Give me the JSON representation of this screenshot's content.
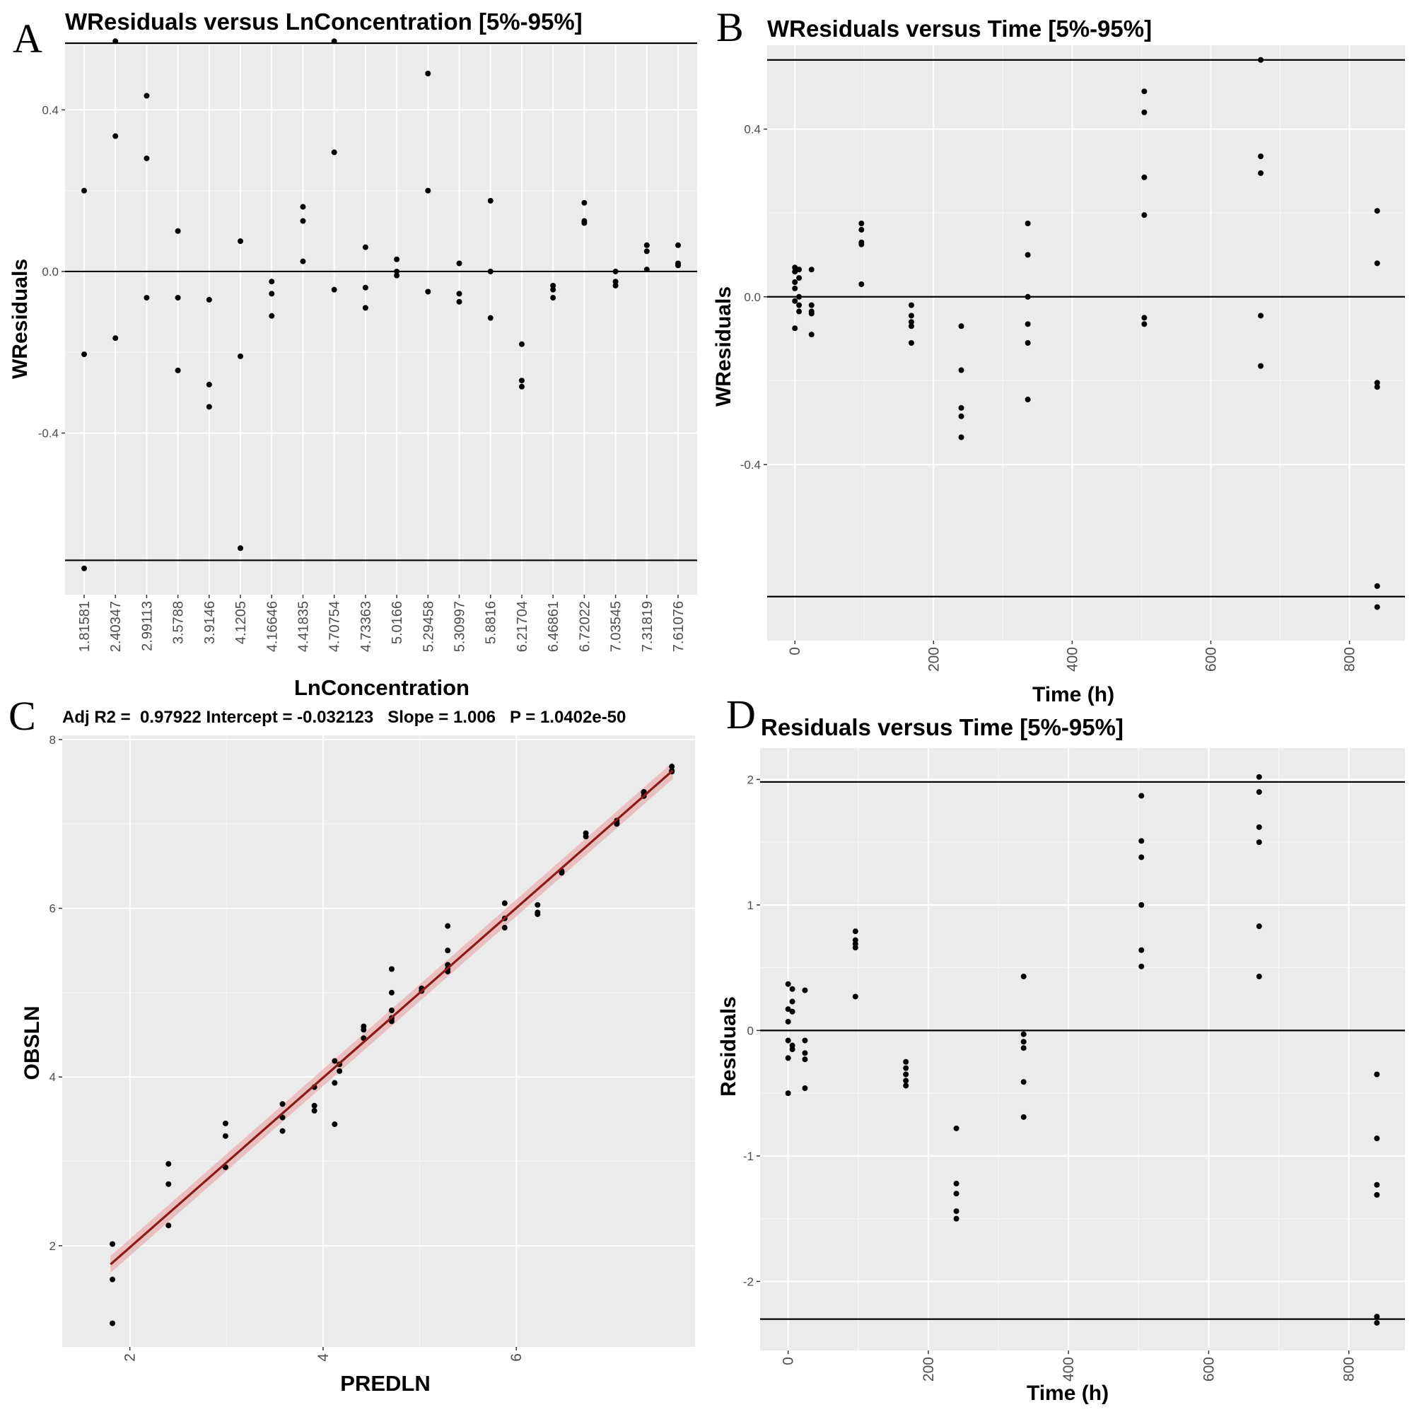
{
  "chart_data": [
    {
      "type": "scatter",
      "panel_letter": "A",
      "title": "WResiduals versus LnConcentration [5%-95%]",
      "xlabel": "LnConcentration",
      "ylabel": "WResiduals",
      "x_scale": "categorical",
      "categories": [
        "1.81581",
        "2.40347",
        "2.99113",
        "3.5788",
        "3.9146",
        "4.1205",
        "4.16646",
        "4.41835",
        "4.70754",
        "4.73363",
        "5.0166",
        "5.29458",
        "5.30997",
        "5.8816",
        "6.21704",
        "6.46861",
        "6.72022",
        "7.03545",
        "7.31819",
        "7.61076"
      ],
      "ylim": [
        -0.8,
        0.56
      ],
      "yticks": [
        "0.4",
        "0.0",
        "-0.4"
      ],
      "ytick_values": [
        0.4,
        0.0,
        -0.4
      ],
      "hlines": [
        0.565,
        0.0,
        -0.715
      ],
      "points": [
        [
          0,
          0.2
        ],
        [
          0,
          -0.205
        ],
        [
          0,
          -0.735
        ],
        [
          1,
          0.57
        ],
        [
          1,
          0.335
        ],
        [
          1,
          -0.165
        ],
        [
          2,
          0.435
        ],
        [
          2,
          0.28
        ],
        [
          2,
          -0.065
        ],
        [
          3,
          0.1
        ],
        [
          3,
          -0.065
        ],
        [
          3,
          -0.245
        ],
        [
          4,
          -0.07
        ],
        [
          4,
          -0.28
        ],
        [
          4,
          -0.335
        ],
        [
          5,
          0.075
        ],
        [
          5,
          -0.21
        ],
        [
          5,
          -0.685
        ],
        [
          6,
          -0.025
        ],
        [
          6,
          -0.055
        ],
        [
          6,
          -0.11
        ],
        [
          7,
          0.16
        ],
        [
          7,
          0.125
        ],
        [
          7,
          0.025
        ],
        [
          8,
          0.57
        ],
        [
          8,
          0.295
        ],
        [
          8,
          -0.045
        ],
        [
          9,
          0.06
        ],
        [
          9,
          -0.04
        ],
        [
          9,
          -0.09
        ],
        [
          10,
          0.03
        ],
        [
          10,
          0.0
        ],
        [
          10,
          -0.01
        ],
        [
          11,
          0.49
        ],
        [
          11,
          0.2
        ],
        [
          11,
          -0.05
        ],
        [
          12,
          0.02
        ],
        [
          12,
          -0.055
        ],
        [
          12,
          -0.075
        ],
        [
          13,
          0.175
        ],
        [
          13,
          0.0
        ],
        [
          13,
          -0.115
        ],
        [
          14,
          -0.18
        ],
        [
          14,
          -0.27
        ],
        [
          14,
          -0.285
        ],
        [
          15,
          -0.035
        ],
        [
          15,
          -0.045
        ],
        [
          15,
          -0.065
        ],
        [
          16,
          0.17
        ],
        [
          16,
          0.125
        ],
        [
          16,
          0.12
        ],
        [
          17,
          0.0
        ],
        [
          17,
          -0.025
        ],
        [
          17,
          -0.035
        ],
        [
          18,
          0.065
        ],
        [
          18,
          0.05
        ],
        [
          18,
          0.005
        ],
        [
          19,
          0.065
        ],
        [
          19,
          0.02
        ],
        [
          19,
          0.015
        ]
      ]
    },
    {
      "type": "scatter",
      "panel_letter": "B",
      "title": "WResiduals versus Time [5%-95%]",
      "xlabel": "Time (h)",
      "ylabel": "WResiduals",
      "xlim": [
        -40,
        880
      ],
      "ylim": [
        -0.82,
        0.6
      ],
      "xticks": [
        "0",
        "200",
        "400",
        "600",
        "800"
      ],
      "xtick_values": [
        0,
        200,
        400,
        600,
        800
      ],
      "yticks": [
        "0.4",
        "0.0",
        "-0.4"
      ],
      "ytick_values": [
        0.4,
        0.0,
        -0.4
      ],
      "hlines": [
        0.565,
        0.0,
        -0.715
      ],
      "points": [
        [
          0,
          0.07
        ],
        [
          0,
          0.06
        ],
        [
          0,
          0.02
        ],
        [
          0,
          -0.01
        ],
        [
          0,
          -0.075
        ],
        [
          0,
          0.035
        ],
        [
          6,
          0.065
        ],
        [
          6,
          0.045
        ],
        [
          6,
          0.0
        ],
        [
          6,
          -0.02
        ],
        [
          6,
          -0.035
        ],
        [
          24,
          0.065
        ],
        [
          24,
          -0.02
        ],
        [
          24,
          -0.035
        ],
        [
          24,
          -0.04
        ],
        [
          24,
          -0.09
        ],
        [
          96,
          0.175
        ],
        [
          96,
          0.16
        ],
        [
          96,
          0.13
        ],
        [
          96,
          0.125
        ],
        [
          96,
          0.03
        ],
        [
          168,
          -0.02
        ],
        [
          168,
          -0.045
        ],
        [
          168,
          -0.06
        ],
        [
          168,
          -0.07
        ],
        [
          168,
          -0.11
        ],
        [
          240,
          -0.07
        ],
        [
          240,
          -0.175
        ],
        [
          240,
          -0.265
        ],
        [
          240,
          -0.285
        ],
        [
          240,
          -0.335
        ],
        [
          336,
          0.175
        ],
        [
          336,
          0.1
        ],
        [
          336,
          0.0
        ],
        [
          336,
          -0.065
        ],
        [
          336,
          -0.11
        ],
        [
          336,
          -0.245
        ],
        [
          504,
          0.49
        ],
        [
          504,
          0.44
        ],
        [
          504,
          0.285
        ],
        [
          504,
          0.195
        ],
        [
          504,
          -0.05
        ],
        [
          504,
          -0.065
        ],
        [
          672,
          0.565
        ],
        [
          672,
          0.335
        ],
        [
          672,
          0.295
        ],
        [
          672,
          -0.045
        ],
        [
          672,
          -0.165
        ],
        [
          840,
          0.205
        ],
        [
          840,
          0.08
        ],
        [
          840,
          -0.205
        ],
        [
          840,
          -0.215
        ],
        [
          840,
          -0.69
        ],
        [
          840,
          -0.74
        ]
      ]
    },
    {
      "type": "scatter",
      "panel_letter": "C",
      "title": "Adj R2 =  0.97922 Intercept = -0.032123   Slope = 1.006   P = 1.0402e-50",
      "xlabel": "PREDLN",
      "ylabel": "OBSLN",
      "xlim": [
        1.3,
        7.85
      ],
      "ylim": [
        0.8,
        8.05
      ],
      "xticks": [
        "2",
        "4",
        "6"
      ],
      "xtick_values": [
        2,
        4,
        6
      ],
      "yticks": [
        "8",
        "6",
        "4",
        "2"
      ],
      "ytick_values": [
        8,
        6,
        4,
        2
      ],
      "fit_line": {
        "intercept": -0.032123,
        "slope": 1.006,
        "x_range": [
          1.8,
          7.62
        ],
        "color": "#8B1A1A",
        "band_color": "#E8B0B0"
      },
      "points": [
        [
          1.82,
          2.02
        ],
        [
          1.82,
          1.6
        ],
        [
          1.82,
          1.08
        ],
        [
          2.4,
          2.97
        ],
        [
          2.4,
          2.73
        ],
        [
          2.4,
          2.24
        ],
        [
          2.99,
          3.45
        ],
        [
          2.99,
          3.3
        ],
        [
          2.99,
          2.93
        ],
        [
          3.58,
          3.68
        ],
        [
          3.58,
          3.52
        ],
        [
          3.58,
          3.36
        ],
        [
          3.91,
          3.88
        ],
        [
          3.91,
          3.66
        ],
        [
          3.91,
          3.6
        ],
        [
          4.12,
          4.19
        ],
        [
          4.12,
          3.93
        ],
        [
          4.12,
          3.44
        ],
        [
          4.17,
          4.15
        ],
        [
          4.17,
          4.07
        ],
        [
          4.42,
          4.6
        ],
        [
          4.42,
          4.56
        ],
        [
          4.42,
          4.46
        ],
        [
          4.71,
          5.28
        ],
        [
          4.71,
          5.0
        ],
        [
          4.71,
          4.79
        ],
        [
          4.71,
          4.7
        ],
        [
          4.71,
          4.66
        ],
        [
          5.02,
          5.05
        ],
        [
          5.02,
          5.02
        ],
        [
          5.29,
          5.79
        ],
        [
          5.29,
          5.5
        ],
        [
          5.29,
          5.33
        ],
        [
          5.29,
          5.28
        ],
        [
          5.29,
          5.25
        ],
        [
          5.88,
          6.06
        ],
        [
          5.88,
          5.88
        ],
        [
          5.88,
          5.77
        ],
        [
          6.22,
          6.04
        ],
        [
          6.22,
          5.95
        ],
        [
          6.22,
          5.93
        ],
        [
          6.47,
          6.44
        ],
        [
          6.47,
          6.42
        ],
        [
          6.72,
          6.89
        ],
        [
          6.72,
          6.85
        ],
        [
          7.04,
          7.04
        ],
        [
          7.04,
          7.01
        ],
        [
          7.04,
          7.0
        ],
        [
          7.32,
          7.38
        ],
        [
          7.32,
          7.37
        ],
        [
          7.32,
          7.33
        ],
        [
          7.61,
          7.68
        ],
        [
          7.61,
          7.63
        ],
        [
          7.61,
          7.62
        ]
      ]
    },
    {
      "type": "scatter",
      "panel_letter": "D",
      "title": "Residuals versus Time [5%-95%]",
      "xlabel": "Time (h)",
      "ylabel": "Residuals",
      "xlim": [
        -40,
        880
      ],
      "ylim": [
        -2.55,
        2.25
      ],
      "xticks": [
        "0",
        "200",
        "400",
        "600",
        "800"
      ],
      "xtick_values": [
        0,
        200,
        400,
        600,
        800
      ],
      "yticks": [
        "2",
        "1",
        "0",
        "-1",
        "-2"
      ],
      "ytick_values": [
        2,
        1,
        0,
        -1,
        -2
      ],
      "hlines": [
        1.98,
        0.0,
        -2.3
      ],
      "points": [
        [
          0,
          0.37
        ],
        [
          0,
          0.17
        ],
        [
          0,
          0.07
        ],
        [
          0,
          -0.08
        ],
        [
          0,
          -0.22
        ],
        [
          0,
          -0.5
        ],
        [
          6,
          0.33
        ],
        [
          6,
          0.23
        ],
        [
          6,
          0.15
        ],
        [
          6,
          -0.12
        ],
        [
          6,
          -0.15
        ],
        [
          24,
          0.32
        ],
        [
          24,
          -0.08
        ],
        [
          24,
          -0.18
        ],
        [
          24,
          -0.23
        ],
        [
          24,
          -0.46
        ],
        [
          96,
          0.79
        ],
        [
          96,
          0.72
        ],
        [
          96,
          0.69
        ],
        [
          96,
          0.66
        ],
        [
          96,
          0.27
        ],
        [
          168,
          -0.25
        ],
        [
          168,
          -0.3
        ],
        [
          168,
          -0.35
        ],
        [
          168,
          -0.4
        ],
        [
          168,
          -0.44
        ],
        [
          240,
          -0.78
        ],
        [
          240,
          -1.22
        ],
        [
          240,
          -1.3
        ],
        [
          240,
          -1.44
        ],
        [
          240,
          -1.5
        ],
        [
          336,
          0.43
        ],
        [
          336,
          -0.03
        ],
        [
          336,
          -0.09
        ],
        [
          336,
          -0.14
        ],
        [
          336,
          -0.41
        ],
        [
          336,
          -0.69
        ],
        [
          504,
          1.87
        ],
        [
          504,
          1.51
        ],
        [
          504,
          1.38
        ],
        [
          504,
          1.0
        ],
        [
          504,
          0.64
        ],
        [
          504,
          0.51
        ],
        [
          672,
          2.02
        ],
        [
          672,
          1.9
        ],
        [
          672,
          1.62
        ],
        [
          672,
          1.5
        ],
        [
          672,
          0.83
        ],
        [
          672,
          0.43
        ],
        [
          840,
          -0.35
        ],
        [
          840,
          -0.86
        ],
        [
          840,
          -1.23
        ],
        [
          840,
          -1.31
        ],
        [
          840,
          -2.28
        ],
        [
          840,
          -2.33
        ]
      ]
    }
  ]
}
